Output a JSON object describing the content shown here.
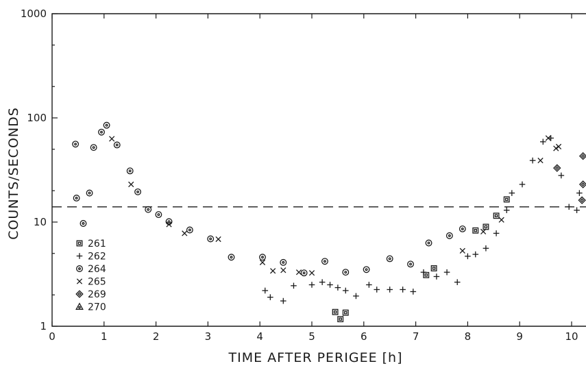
{
  "chart_data": {
    "type": "scatter",
    "title": "",
    "xlabel": "TIME AFTER PERIGEE [h]",
    "ylabel": "COUNTS/SECONDS",
    "xlim": [
      0,
      10.5
    ],
    "ylim": [
      1,
      1000
    ],
    "y_scale": "log",
    "grid": false,
    "legend_position": "bottom-left",
    "x_ticks": [
      "0",
      "1",
      "2",
      "3",
      "4",
      "5",
      "6",
      "7",
      "8",
      "9",
      "10"
    ],
    "y_ticks": [
      {
        "value": 1,
        "label": "1"
      },
      {
        "value": 10,
        "label": "10"
      },
      {
        "value": 100,
        "label": "100"
      },
      {
        "value": 1000,
        "label": "1000"
      }
    ],
    "threshold": {
      "value": 14
    },
    "series": [
      {
        "name": "261",
        "marker": "square-dot",
        "points": [
          [
            5.45,
            1.37
          ],
          [
            5.55,
            1.17
          ],
          [
            5.65,
            1.35
          ],
          [
            7.2,
            3.1
          ],
          [
            7.35,
            3.6
          ],
          [
            8.15,
            8.3
          ],
          [
            8.35,
            9.0
          ],
          [
            8.55,
            11.5
          ],
          [
            8.75,
            16.5
          ]
        ]
      },
      {
        "name": "262",
        "marker": "plus",
        "points": [
          [
            4.1,
            2.2
          ],
          [
            4.2,
            1.9
          ],
          [
            4.45,
            1.75
          ],
          [
            4.65,
            2.45
          ],
          [
            5.0,
            2.5
          ],
          [
            5.2,
            2.65
          ],
          [
            5.35,
            2.5
          ],
          [
            5.5,
            2.35
          ],
          [
            5.65,
            2.2
          ],
          [
            5.85,
            1.95
          ],
          [
            6.1,
            2.5
          ],
          [
            6.25,
            2.25
          ],
          [
            6.5,
            2.25
          ],
          [
            6.75,
            2.25
          ],
          [
            6.95,
            2.15
          ],
          [
            7.15,
            3.3
          ],
          [
            7.4,
            3.0
          ],
          [
            7.6,
            3.3
          ],
          [
            7.8,
            2.65
          ],
          [
            8.0,
            4.7
          ],
          [
            8.15,
            4.9
          ],
          [
            8.35,
            5.6
          ],
          [
            8.55,
            7.8
          ],
          [
            8.75,
            13.0
          ],
          [
            8.85,
            19.0
          ],
          [
            9.05,
            23.0
          ],
          [
            9.25,
            39.0
          ],
          [
            9.45,
            59.0
          ],
          [
            9.6,
            64.0
          ],
          [
            9.8,
            28.0
          ],
          [
            9.95,
            14.0
          ],
          [
            10.1,
            13.0
          ],
          [
            10.15,
            19.0
          ]
        ]
      },
      {
        "name": "264",
        "marker": "circle-dot",
        "points": [
          [
            0.45,
            56
          ],
          [
            0.47,
            17
          ],
          [
            0.6,
            9.7
          ],
          [
            0.72,
            19
          ],
          [
            0.8,
            52
          ],
          [
            0.95,
            73
          ],
          [
            1.05,
            85
          ],
          [
            1.25,
            55
          ],
          [
            1.5,
            31
          ],
          [
            1.65,
            19.5
          ],
          [
            1.85,
            13.2
          ],
          [
            2.05,
            11.8
          ],
          [
            2.25,
            10.1
          ],
          [
            2.65,
            8.4
          ],
          [
            3.05,
            6.9
          ],
          [
            3.45,
            4.6
          ],
          [
            4.05,
            4.6
          ],
          [
            4.45,
            4.1
          ],
          [
            4.85,
            3.25
          ],
          [
            5.25,
            4.2
          ],
          [
            5.65,
            3.3
          ],
          [
            6.05,
            3.5
          ],
          [
            6.5,
            4.45
          ],
          [
            6.9,
            3.95
          ],
          [
            7.25,
            6.3
          ],
          [
            7.65,
            7.4
          ],
          [
            7.9,
            8.6
          ]
        ]
      },
      {
        "name": "265",
        "marker": "x",
        "points": [
          [
            1.15,
            63
          ],
          [
            1.52,
            23
          ],
          [
            2.25,
            9.5
          ],
          [
            2.55,
            7.8
          ],
          [
            3.2,
            6.85
          ],
          [
            4.05,
            4.1
          ],
          [
            4.25,
            3.4
          ],
          [
            4.45,
            3.45
          ],
          [
            4.75,
            3.3
          ],
          [
            5.0,
            3.25
          ],
          [
            7.9,
            5.3
          ],
          [
            8.3,
            8.1
          ],
          [
            8.65,
            10.5
          ],
          [
            9.4,
            39.0
          ],
          [
            9.55,
            64.0
          ],
          [
            9.7,
            51.0
          ],
          [
            9.75,
            53.0
          ]
        ]
      },
      {
        "name": "269",
        "marker": "diamond-dot",
        "points": [
          [
            9.72,
            33
          ],
          [
            10.22,
            43
          ],
          [
            10.22,
            23
          ],
          [
            10.2,
            16.2
          ]
        ]
      },
      {
        "name": "270",
        "marker": "triangle-dot",
        "points": []
      }
    ]
  }
}
